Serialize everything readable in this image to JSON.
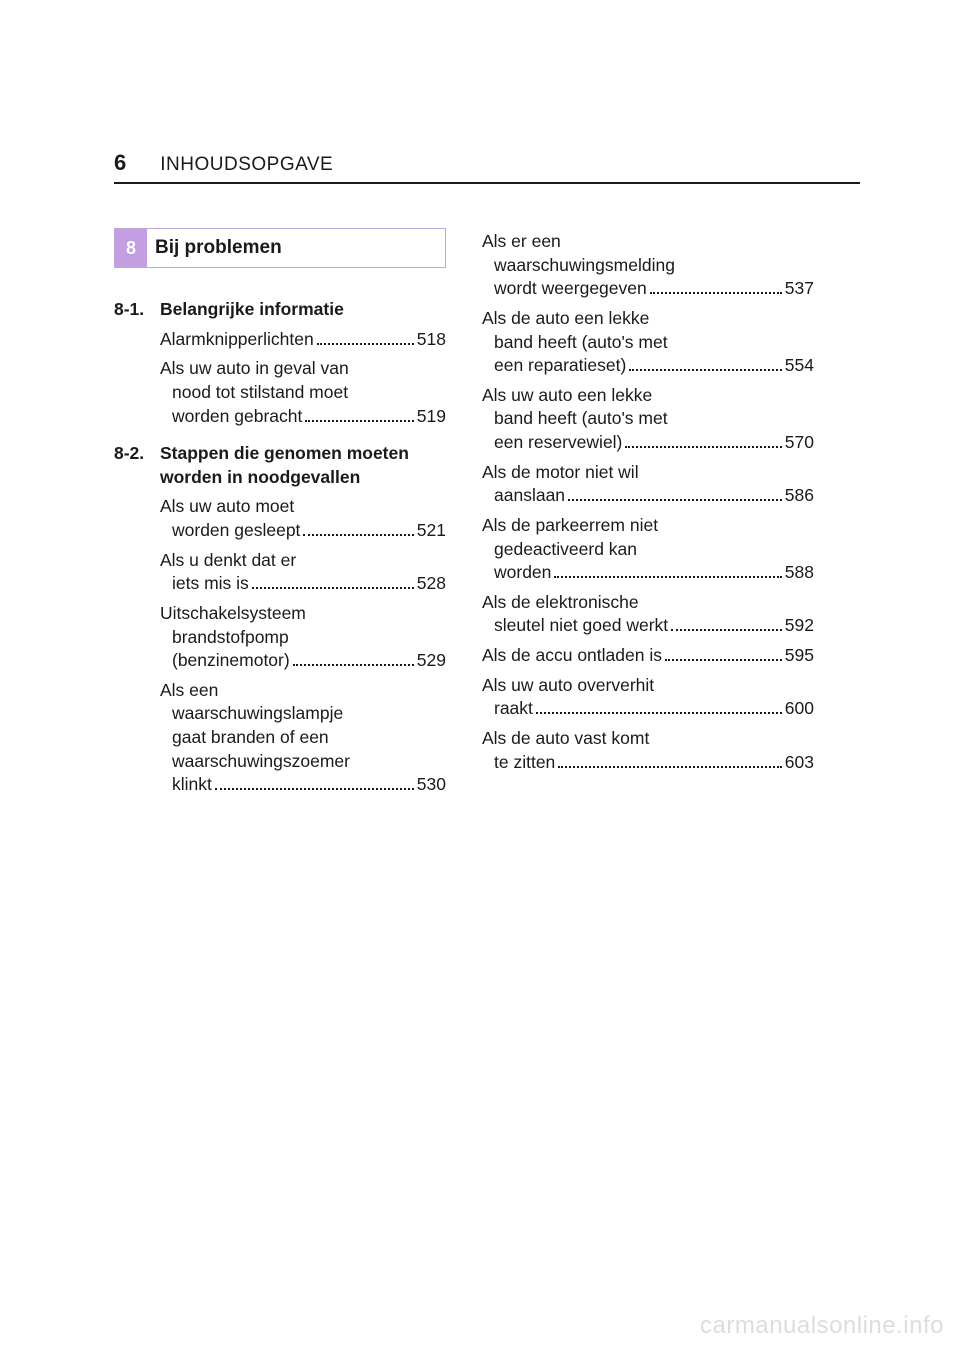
{
  "header": {
    "page_number": "6",
    "breadcrumb": "INHOUDSOPGAVE"
  },
  "section": {
    "number": "8",
    "title": "Bij problemen",
    "accent_color": "#c39ee2",
    "border_color": "#bda8d6"
  },
  "left": {
    "sub1": {
      "num": "8-1.",
      "title": "Belangrijke informatie",
      "items": [
        {
          "lines": [
            "Alarmknipperlichten"
          ],
          "page": "518"
        },
        {
          "lines": [
            "Als uw auto in geval van",
            "nood tot stilstand moet",
            "worden gebracht"
          ],
          "page": "519"
        }
      ]
    },
    "sub2": {
      "num": "8-2.",
      "title": "Stappen die genomen moeten worden in noodgevallen",
      "items": [
        {
          "lines": [
            "Als uw auto moet",
            "worden gesleept"
          ],
          "page": "521"
        },
        {
          "lines": [
            "Als u denkt dat er",
            "iets mis is"
          ],
          "page": "528"
        },
        {
          "lines": [
            "Uitschakelsysteem",
            "brandstofpomp",
            "(benzinemotor)"
          ],
          "page": "529"
        },
        {
          "lines": [
            "Als een",
            "waarschuwingslampje",
            "gaat branden of een",
            "waarschuwingszoemer",
            "klinkt"
          ],
          "page": "530"
        }
      ]
    }
  },
  "right": {
    "items": [
      {
        "lines": [
          "Als er een",
          "waarschuwingsmelding",
          "wordt weergegeven"
        ],
        "page": "537"
      },
      {
        "lines": [
          "Als de auto een lekke",
          "band heeft (auto's met",
          "een reparatieset)"
        ],
        "page": "554"
      },
      {
        "lines": [
          "Als uw auto een lekke",
          "band heeft (auto's met",
          "een reservewiel)"
        ],
        "page": "570"
      },
      {
        "lines": [
          "Als de motor niet wil",
          "aanslaan"
        ],
        "page": "586"
      },
      {
        "lines": [
          "Als de parkeerrem niet",
          "gedeactiveerd kan",
          "worden"
        ],
        "page": "588"
      },
      {
        "lines": [
          "Als de elektronische",
          "sleutel niet goed werkt"
        ],
        "page": "592"
      },
      {
        "lines": [
          "Als de accu ontladen is"
        ],
        "page": "595"
      },
      {
        "lines": [
          "Als uw auto oververhit",
          "raakt"
        ],
        "page": "600"
      },
      {
        "lines": [
          "Als de auto vast komt",
          "te zitten"
        ],
        "page": "603"
      }
    ]
  },
  "watermark": "carmanualsonline.info"
}
